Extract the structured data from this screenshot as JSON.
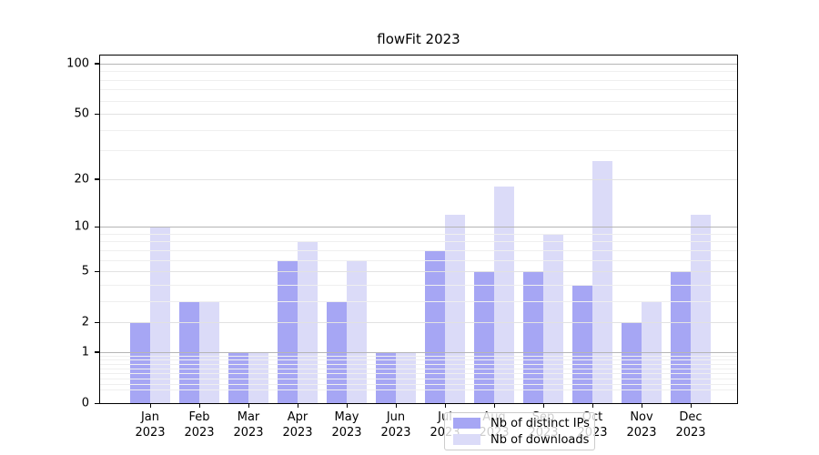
{
  "chart_data": {
    "type": "bar",
    "title": "flowFit 2023",
    "categories": [
      "Jan",
      "Feb",
      "Mar",
      "Apr",
      "May",
      "Jun",
      "Jul",
      "Aug",
      "Sep",
      "Oct",
      "Nov",
      "Dec"
    ],
    "x_year": "2023",
    "series": [
      {
        "name": "Nb of distinct IPs",
        "color": "#a6a6f4",
        "values": [
          2,
          3,
          1,
          6,
          3,
          1,
          7,
          5,
          5,
          4,
          2,
          5
        ]
      },
      {
        "name": "Nb of downloads",
        "color": "#dbdbf8",
        "values": [
          10,
          3,
          1,
          8,
          6,
          1,
          12,
          18,
          9,
          26,
          3,
          12
        ]
      }
    ],
    "y_axis": {
      "scale": "log10(1+x)",
      "tick_values": [
        0,
        1,
        2,
        5,
        10,
        20,
        50,
        100
      ],
      "tick_labels": [
        "0",
        "1",
        "2",
        "5",
        "10",
        "20",
        "50",
        "100"
      ],
      "minor_tick_values": [
        0.2,
        0.3,
        0.4,
        0.5,
        0.6,
        0.7,
        0.8,
        0.9,
        3,
        4,
        6,
        7,
        8,
        9,
        30,
        40,
        60,
        70,
        80,
        90
      ],
      "range_max": 113
    },
    "legend_entries": [
      "Nb of distinct IPs",
      "Nb of downloads"
    ],
    "grid": true,
    "legend_position": "bottom-center",
    "colors": {
      "decade_gridline": "#b5b5b5",
      "major_gridline": "#e2e2e2",
      "minor_gridline": "#efefef",
      "axis": "#000000",
      "background": "#ffffff"
    }
  }
}
